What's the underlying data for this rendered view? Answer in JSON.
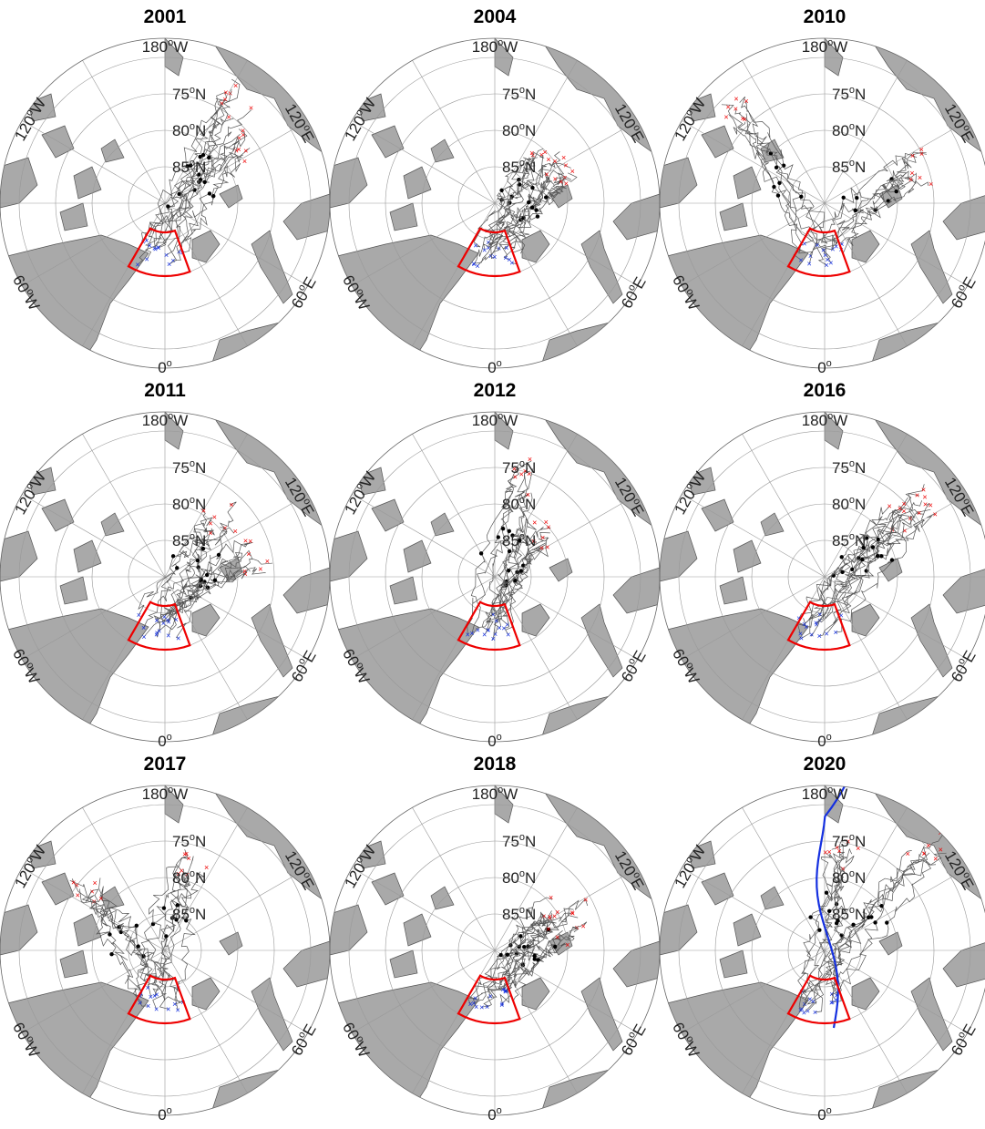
{
  "panels": [
    {
      "title": "2001"
    },
    {
      "title": "2004"
    },
    {
      "title": "2010"
    },
    {
      "title": "2011"
    },
    {
      "title": "2012"
    },
    {
      "title": "2016"
    },
    {
      "title": "2017"
    },
    {
      "title": "2018"
    },
    {
      "title": "2020"
    }
  ],
  "lon_labels": [
    {
      "num": "180",
      "sup": "o",
      "dir": "W"
    },
    {
      "num": "120",
      "sup": "o",
      "dir": "W"
    },
    {
      "num": "120",
      "sup": "o",
      "dir": "E"
    },
    {
      "num": "60",
      "sup": "o",
      "dir": "W"
    },
    {
      "num": "60",
      "sup": "o",
      "dir": "E"
    },
    {
      "num": "0",
      "sup": "o",
      "dir": ""
    }
  ],
  "lat_labels": [
    {
      "num": "75",
      "sup": "o",
      "dir": "N"
    },
    {
      "num": "80",
      "sup": "o",
      "dir": "N"
    },
    {
      "num": "85",
      "sup": "o",
      "dir": "N"
    }
  ]
}
